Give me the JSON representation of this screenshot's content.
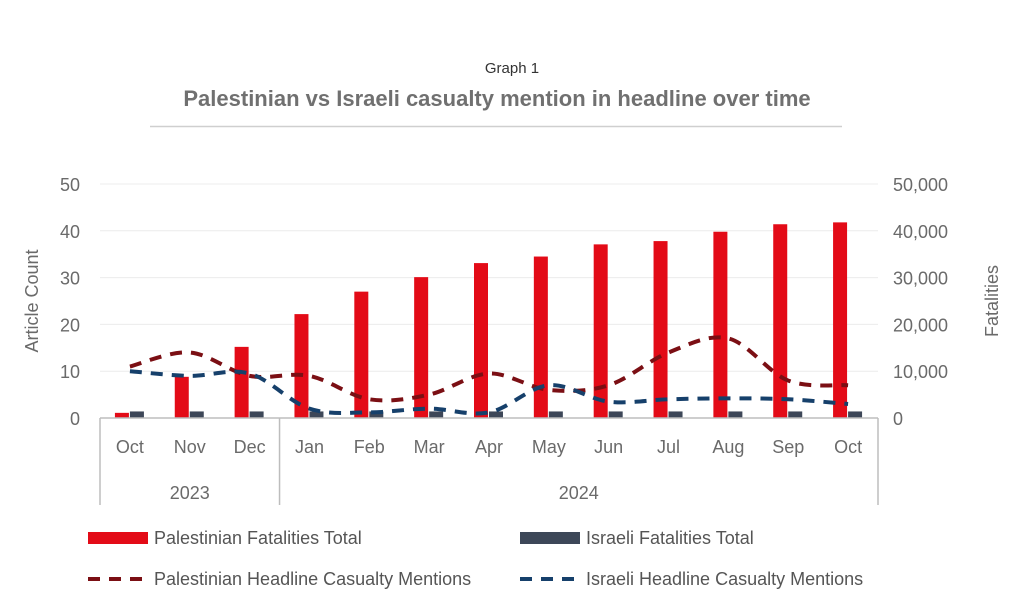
{
  "header": {
    "subtitle": "Graph 1",
    "title": "Palestinian vs Israeli casualty mention in headline over time"
  },
  "chart_data": {
    "type": "bar",
    "title": "Palestinian vs Israeli casualty mention in headline over time",
    "subtitle": "Graph 1",
    "categories": [
      "Oct",
      "Nov",
      "Dec",
      "Jan",
      "Feb",
      "Mar",
      "Apr",
      "May",
      "Jun",
      "Jul",
      "Aug",
      "Sep",
      "Oct"
    ],
    "category_groups": [
      {
        "label": "2023",
        "count": 3
      },
      {
        "label": "2024",
        "count": 10
      }
    ],
    "ylabel_left": "Article Count",
    "ylabel_right": "Fatalities",
    "ylim_left": [
      0,
      50
    ],
    "ylim_right": [
      0,
      50000
    ],
    "yticks_left": [
      "0",
      "10",
      "20",
      "30",
      "40",
      "50"
    ],
    "yticks_right": [
      "0",
      "10,000",
      "20,000",
      "30,000",
      "40,000",
      "50,000"
    ],
    "grid": true,
    "legend_position": "bottom",
    "series": [
      {
        "name": "Palestinian Fatalities Total",
        "kind": "bar",
        "axis": "right",
        "color": "#e30b17",
        "values": [
          1100,
          8800,
          15200,
          22200,
          27000,
          30100,
          33100,
          34500,
          37100,
          37800,
          39800,
          41400,
          41800
        ]
      },
      {
        "name": "Israeli Fatalities Total",
        "kind": "bar",
        "axis": "right",
        "color": "#3d4758",
        "values": [
          1400,
          1400,
          1400,
          1400,
          1400,
          1400,
          1400,
          1400,
          1400,
          1400,
          1400,
          1400,
          1400
        ]
      },
      {
        "name": "Palestinian Headline Casualty Mentions",
        "kind": "line",
        "style": "dashed",
        "axis": "left",
        "color": "#7b0f14",
        "values": [
          11,
          14,
          9,
          9,
          4,
          5,
          9.5,
          6,
          7,
          14,
          17,
          8,
          7
        ]
      },
      {
        "name": "Israeli Headline Casualty Mentions",
        "kind": "line",
        "style": "dashed",
        "axis": "left",
        "color": "#16406b",
        "values": [
          10,
          9,
          9.5,
          2,
          1.2,
          2,
          1.2,
          7,
          3.5,
          4,
          4.2,
          4,
          3
        ]
      }
    ]
  }
}
